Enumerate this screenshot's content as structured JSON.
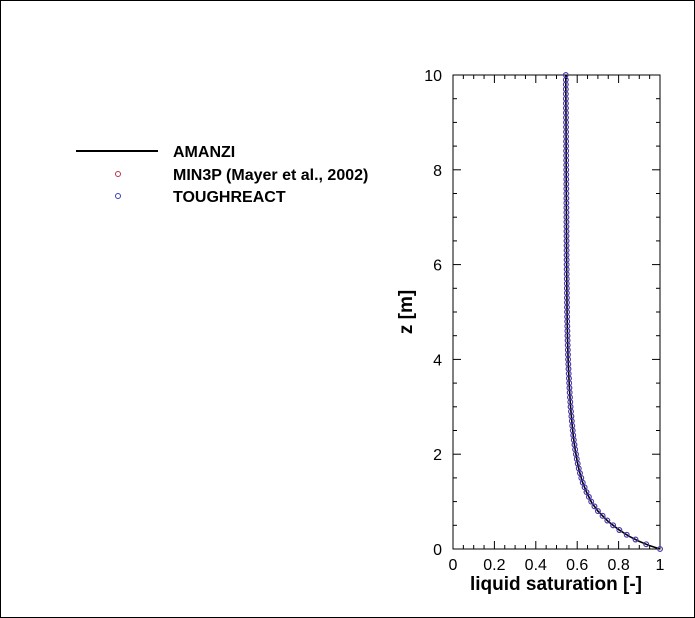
{
  "chart_data": {
    "type": "line",
    "title": "",
    "xlabel": "liquid saturation [-]",
    "ylabel": "z [m]",
    "xlim": [
      0,
      1
    ],
    "ylim": [
      0,
      10
    ],
    "xticks": [
      "0",
      "0.2",
      "0.4",
      "0.6",
      "0.8",
      "1"
    ],
    "yticks": [
      "0",
      "2",
      "4",
      "6",
      "8",
      "10"
    ],
    "legend_position": "left of plot, upper",
    "series": [
      {
        "name": "AMANZI",
        "style": "line",
        "color": "#000000",
        "x": [
          1.0,
          0.95,
          0.9,
          0.85,
          0.8,
          0.75,
          0.7,
          0.67,
          0.645,
          0.625,
          0.61,
          0.6,
          0.59,
          0.582,
          0.575,
          0.568,
          0.563,
          0.559,
          0.556,
          0.553,
          0.551,
          0.549,
          0.548,
          0.547,
          0.546,
          0.545,
          0.545
        ],
        "y": [
          0.0,
          0.07,
          0.16,
          0.27,
          0.41,
          0.58,
          0.8,
          0.98,
          1.2,
          1.42,
          1.65,
          1.85,
          2.1,
          2.35,
          2.65,
          3.0,
          3.35,
          3.7,
          4.0,
          4.5,
          5.0,
          6.0,
          7.0,
          8.0,
          9.0,
          9.7,
          10.0
        ]
      },
      {
        "name": "MIN3P (Mayer et al., 2002)",
        "style": "markers",
        "color": "#c0304a",
        "x": [
          1.0,
          0.95,
          0.9,
          0.85,
          0.8,
          0.75,
          0.7,
          0.67,
          0.645,
          0.625,
          0.61,
          0.6,
          0.59,
          0.582,
          0.575,
          0.568,
          0.563,
          0.559,
          0.556,
          0.553,
          0.551,
          0.549,
          0.548,
          0.547,
          0.546,
          0.545,
          0.545
        ],
        "y": [
          0.0,
          0.07,
          0.16,
          0.27,
          0.41,
          0.58,
          0.8,
          0.98,
          1.2,
          1.42,
          1.65,
          1.85,
          2.1,
          2.35,
          2.65,
          3.0,
          3.35,
          3.7,
          4.0,
          4.5,
          5.0,
          6.0,
          7.0,
          8.0,
          9.0,
          9.7,
          10.0
        ]
      },
      {
        "name": "TOUGHREACT",
        "style": "markers",
        "color": "#3b3bbf",
        "x": [
          1.0,
          0.95,
          0.9,
          0.85,
          0.8,
          0.75,
          0.7,
          0.67,
          0.645,
          0.625,
          0.61,
          0.6,
          0.59,
          0.582,
          0.575,
          0.568,
          0.563,
          0.559,
          0.556,
          0.553,
          0.551,
          0.549,
          0.548,
          0.547,
          0.546,
          0.545,
          0.545
        ],
        "y": [
          0.0,
          0.07,
          0.16,
          0.27,
          0.41,
          0.58,
          0.8,
          0.98,
          1.2,
          1.42,
          1.65,
          1.85,
          2.1,
          2.35,
          2.65,
          3.0,
          3.35,
          3.7,
          4.0,
          4.5,
          5.0,
          6.0,
          7.0,
          8.0,
          9.0,
          9.7,
          10.0
        ]
      }
    ]
  }
}
